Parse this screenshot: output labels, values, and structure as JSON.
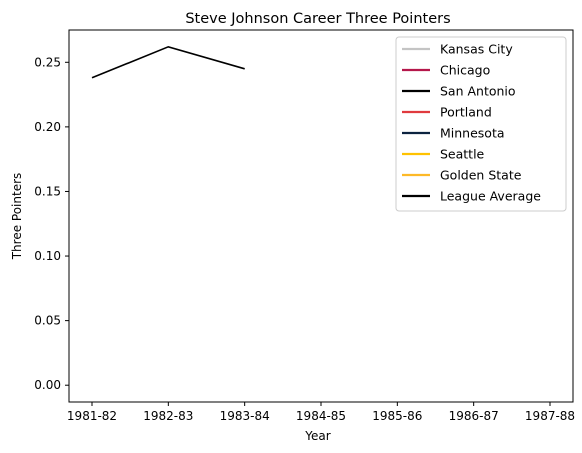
{
  "chart_data": {
    "type": "line",
    "title": "Steve Johnson  Career Three Pointers",
    "xlabel": "Year",
    "ylabel": "Three Pointers",
    "categories": [
      "1981-82",
      "1982-83",
      "1983-84",
      "1984-85",
      "1985-86",
      "1986-87",
      "1987-88"
    ],
    "ylim": [
      -0.013,
      0.275
    ],
    "yticks": [
      "0.00",
      "0.05",
      "0.10",
      "0.15",
      "0.20",
      "0.25"
    ],
    "grid": false,
    "legend_position": "top-right",
    "series": [
      {
        "name": "Kansas City",
        "color": "#c4c4c4",
        "values": [
          null,
          null,
          null,
          null,
          null,
          null,
          null
        ]
      },
      {
        "name": "Chicago",
        "color": "#b5174b",
        "values": [
          null,
          null,
          null,
          null,
          null,
          null,
          null
        ]
      },
      {
        "name": "San Antonio",
        "color": "#000000",
        "values": [
          null,
          null,
          null,
          null,
          null,
          null,
          null
        ]
      },
      {
        "name": "Portland",
        "color": "#e03a3e",
        "values": [
          null,
          null,
          null,
          null,
          null,
          null,
          null
        ]
      },
      {
        "name": "Minnesota",
        "color": "#0c2340",
        "values": [
          null,
          null,
          null,
          null,
          null,
          null,
          null
        ]
      },
      {
        "name": "Seattle",
        "color": "#ffc200",
        "values": [
          null,
          null,
          null,
          null,
          null,
          null,
          null
        ]
      },
      {
        "name": "Golden State",
        "color": "#fdb927",
        "values": [
          null,
          null,
          null,
          null,
          null,
          null,
          null
        ]
      },
      {
        "name": "League Average",
        "color": "#000000",
        "values": [
          0.238,
          0.262,
          0.245,
          null,
          null,
          null,
          null
        ]
      }
    ]
  }
}
